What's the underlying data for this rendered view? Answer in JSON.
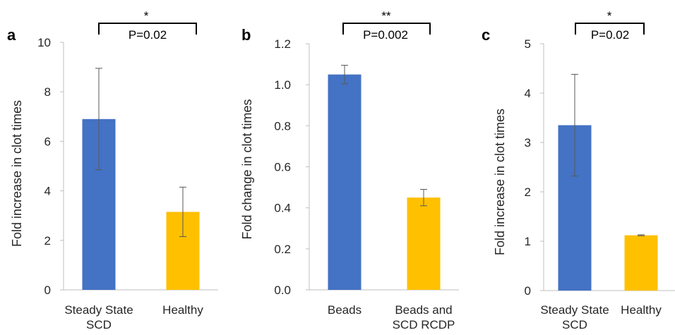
{
  "chart_data": [
    {
      "type": "bar",
      "panel": "a",
      "ylabel": "Fold increase in clot times",
      "ylim": [
        0,
        10
      ],
      "yticks": [
        "0",
        "2",
        "4",
        "6",
        "8",
        "10"
      ],
      "categories": [
        "Steady State SCD",
        "Healthy"
      ],
      "category_lines": [
        [
          "Steady State",
          "SCD"
        ],
        [
          "Healthy"
        ]
      ],
      "values": [
        6.9,
        3.15
      ],
      "errors": [
        2.05,
        1.0
      ],
      "colors": [
        "#4472C4",
        "#FFC000"
      ],
      "significance": {
        "stars": "*",
        "p_text": "P=0.02"
      },
      "grid": false
    },
    {
      "type": "bar",
      "panel": "b",
      "ylabel": "Fold change in clot times",
      "ylim": [
        0,
        1.2
      ],
      "yticks": [
        "0.0",
        "0.2",
        "0.4",
        "0.6",
        "0.8",
        "1.0",
        "1.2"
      ],
      "categories": [
        "Beads",
        "Beads and SCD RCDP"
      ],
      "category_lines": [
        [
          "Beads"
        ],
        [
          "Beads and",
          "SCD RCDP"
        ]
      ],
      "values": [
        1.05,
        0.45
      ],
      "errors": [
        0.045,
        0.04
      ],
      "colors": [
        "#4472C4",
        "#FFC000"
      ],
      "significance": {
        "stars": "**",
        "p_text": "P=0.002"
      },
      "grid": false
    },
    {
      "type": "bar",
      "panel": "c",
      "ylabel": "Fold increase in clot times",
      "ylim": [
        0,
        5
      ],
      "yticks": [
        "0",
        "1",
        "2",
        "3",
        "4",
        "5"
      ],
      "categories": [
        "Steady State SCD",
        "Healthy"
      ],
      "category_lines": [
        [
          "Steady State",
          "SCD"
        ],
        [
          "Healthy"
        ]
      ],
      "values": [
        3.35,
        1.12
      ],
      "errors": [
        1.03,
        0.01
      ],
      "colors": [
        "#4472C4",
        "#FFC000"
      ],
      "significance": {
        "stars": "*",
        "p_text": "P=0.02"
      },
      "grid": false
    }
  ]
}
